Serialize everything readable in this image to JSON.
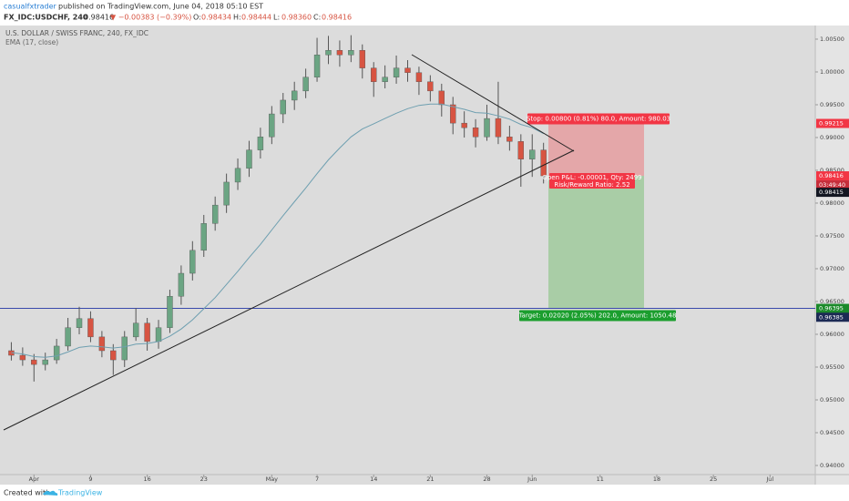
{
  "header": {
    "author": "casualfxtrader",
    "published": "published on TradingView.com, June 04, 2018 05:10 EST",
    "symbol": "FX_IDC:USDCHF, 240",
    "last": "0.98416",
    "change": "▼ −0.00383 (−0.39%)",
    "ohlc": [
      {
        "label": "O:",
        "value": "0.98434"
      },
      {
        "label": "H:",
        "value": "0.98444"
      },
      {
        "label": "L:",
        "value": "0.98360"
      },
      {
        "label": "C:",
        "value": "0.98416"
      }
    ]
  },
  "chart_data": {
    "type": "candlestick",
    "title": "U.S. DOLLAR / SWISS FRANC, 240, FX_IDC",
    "categories": [
      "2018-03-29",
      "2018-03-30",
      "2018-04-02",
      "2018-04-03",
      "2018-04-04",
      "2018-04-05",
      "2018-04-06",
      "2018-04-09",
      "2018-04-10",
      "2018-04-11",
      "2018-04-12",
      "2018-04-13",
      "2018-04-16",
      "2018-04-17",
      "2018-04-18",
      "2018-04-19",
      "2018-04-20",
      "2018-04-23",
      "2018-04-24",
      "2018-04-25",
      "2018-04-26",
      "2018-04-27",
      "2018-04-30",
      "2018-05-01",
      "2018-05-02",
      "2018-05-03",
      "2018-05-04",
      "2018-05-07",
      "2018-05-08",
      "2018-05-09",
      "2018-05-10",
      "2018-05-11",
      "2018-05-14",
      "2018-05-15",
      "2018-05-16",
      "2018-05-17",
      "2018-05-18",
      "2018-05-21",
      "2018-05-22",
      "2018-05-23",
      "2018-05-24",
      "2018-05-25",
      "2018-05-28",
      "2018-05-29",
      "2018-05-30",
      "2018-05-31",
      "2018-06-01",
      "2018-06-04"
    ],
    "open": [
      0.9575,
      0.9568,
      0.9561,
      0.9554,
      0.9561,
      0.9582,
      0.961,
      0.9624,
      0.9596,
      0.9575,
      0.9561,
      0.9596,
      0.9617,
      0.9589,
      0.961,
      0.9658,
      0.9693,
      0.9728,
      0.9769,
      0.9797,
      0.9832,
      0.9853,
      0.9881,
      0.9901,
      0.9936,
      0.9957,
      0.9971,
      0.9992,
      1.0026,
      1.0033,
      1.0026,
      1.0033,
      1.0006,
      0.9985,
      0.9992,
      1.0006,
      0.9999,
      0.9985,
      0.9971,
      0.995,
      0.9922,
      0.9915,
      0.9901,
      0.9929,
      0.9901,
      0.9894,
      0.9867,
      0.9881
    ],
    "high": [
      0.9588,
      0.958,
      0.957,
      0.9572,
      0.9593,
      0.9625,
      0.9642,
      0.9635,
      0.9605,
      0.9585,
      0.9605,
      0.964,
      0.9625,
      0.9622,
      0.9668,
      0.9705,
      0.9742,
      0.9782,
      0.981,
      0.9845,
      0.9868,
      0.9895,
      0.9915,
      0.9948,
      0.9968,
      0.9985,
      1.0005,
      1.0052,
      1.0055,
      1.0048,
      1.0056,
      1.0042,
      1.0015,
      1.001,
      1.0025,
      1.0018,
      1.0008,
      0.9995,
      0.9982,
      0.9962,
      0.994,
      0.9928,
      0.995,
      0.9985,
      0.9918,
      0.9905,
      0.9905,
      0.9892
    ],
    "low": [
      0.956,
      0.9552,
      0.9528,
      0.9545,
      0.9555,
      0.9575,
      0.96,
      0.9588,
      0.9565,
      0.9538,
      0.955,
      0.959,
      0.9575,
      0.9578,
      0.9602,
      0.9645,
      0.9682,
      0.9718,
      0.9758,
      0.9785,
      0.982,
      0.984,
      0.9868,
      0.989,
      0.9922,
      0.9942,
      0.996,
      0.9985,
      1.0012,
      1.0008,
      1.0015,
      0.999,
      0.9962,
      0.9975,
      0.9982,
      0.9985,
      0.9965,
      0.9955,
      0.9932,
      0.9905,
      0.99,
      0.9885,
      0.9895,
      0.989,
      0.988,
      0.9825,
      0.984,
      0.983
    ],
    "close": [
      0.9568,
      0.9561,
      0.9554,
      0.9561,
      0.9582,
      0.961,
      0.9624,
      0.9596,
      0.9575,
      0.9561,
      0.9596,
      0.9617,
      0.9589,
      0.961,
      0.9658,
      0.9693,
      0.9728,
      0.9769,
      0.9797,
      0.9832,
      0.9853,
      0.9881,
      0.9901,
      0.9936,
      0.9957,
      0.9971,
      0.9992,
      1.0026,
      1.0033,
      1.0026,
      1.0033,
      1.0006,
      0.9985,
      0.9992,
      1.0006,
      0.9999,
      0.9985,
      0.9971,
      0.995,
      0.9922,
      0.9915,
      0.9901,
      0.9929,
      0.9901,
      0.9894,
      0.9867,
      0.9881,
      0.98416
    ],
    "up_color": "#6ba583",
    "down_color": "#d75442",
    "ema": {
      "name": "EMA (17, close)",
      "color": "#6e9fb0",
      "values": [
        0.9572,
        0.957,
        0.9566,
        0.9565,
        0.9567,
        0.9573,
        0.958,
        0.9582,
        0.9581,
        0.9579,
        0.9581,
        0.9585,
        0.9586,
        0.9589,
        0.9597,
        0.9608,
        0.9622,
        0.9639,
        0.9656,
        0.9676,
        0.9696,
        0.9717,
        0.9737,
        0.9759,
        0.9781,
        0.9802,
        0.9823,
        0.9845,
        0.9866,
        0.9884,
        0.9901,
        0.9913,
        0.9921,
        0.9929,
        0.9937,
        0.9944,
        0.9949,
        0.9951,
        0.9951,
        0.9947,
        0.9943,
        0.9938,
        0.9937,
        0.9933,
        0.9928,
        0.992,
        0.9915,
        0.9906
      ]
    },
    "xlim": [
      "2018-03-28",
      "2018-07-06"
    ],
    "xticks": [
      {
        "value": "2018-04-02",
        "label": "Apr"
      },
      {
        "value": "2018-04-09",
        "label": "9"
      },
      {
        "value": "2018-04-16",
        "label": "16"
      },
      {
        "value": "2018-04-23",
        "label": "23"
      },
      {
        "value": "2018-05-01",
        "label": "May"
      },
      {
        "value": "2018-05-07",
        "label": "7"
      },
      {
        "value": "2018-05-14",
        "label": "14"
      },
      {
        "value": "2018-05-21",
        "label": "21"
      },
      {
        "value": "2018-05-28",
        "label": "28"
      },
      {
        "value": "2018-06-01",
        "label": "Jun"
      },
      {
        "value": "2018-06-11",
        "label": "11"
      },
      {
        "value": "2018-06-18",
        "label": "18"
      },
      {
        "value": "2018-06-25",
        "label": "25"
      },
      {
        "value": "2018-07-02",
        "label": "Jul"
      }
    ],
    "ylim": [
      0.93861,
      1.00708
    ],
    "yticks": [
      {
        "value": 0.94,
        "label": "0.94000"
      },
      {
        "value": 0.945,
        "label": "0.94500"
      },
      {
        "value": 0.95,
        "label": "0.95000"
      },
      {
        "value": 0.955,
        "label": "0.95500"
      },
      {
        "value": 0.96,
        "label": "0.96000"
      },
      {
        "value": 0.965,
        "label": "0.96500"
      },
      {
        "value": 0.97,
        "label": "0.97000"
      },
      {
        "value": 0.975,
        "label": "0.97500"
      },
      {
        "value": 0.98,
        "label": "0.98000"
      },
      {
        "value": 0.985,
        "label": "0.98500"
      },
      {
        "value": 0.99,
        "label": "0.99000"
      },
      {
        "value": 0.995,
        "label": "0.99500"
      },
      {
        "value": 1.0,
        "label": "1.00000"
      },
      {
        "value": 1.005,
        "label": "1.00500"
      }
    ],
    "grid": false,
    "position": {
      "entry": 0.98416,
      "stop": 0.99215,
      "target": 0.96395,
      "stop_label": "Stop: 0.00800 (0.81%) 80.0, Amount: 980.03",
      "pnl_label": "Open P&L: -0.00001, Qty: 2499",
      "rr_label": "Risk/Reward Ratio: 2.52",
      "target_label": "Target: 0.02020 (2.05%) 202.0, Amount: 1050.48"
    },
    "hline": {
      "value": 0.96395,
      "color": "#3949ab"
    },
    "price_labels": [
      {
        "value": 0.99215,
        "color": "#f23645"
      },
      {
        "value": 0.98416,
        "color": "#f23645"
      },
      {
        "value": 0.98415,
        "color": "#131722"
      },
      {
        "value": 0.96395,
        "color": "#1b8a2a"
      },
      {
        "value": 0.96385,
        "color": "#1c2a55"
      }
    ],
    "countdown": "03:49:40"
  },
  "footer": {
    "created": "Created with",
    "brand": "TradingView"
  }
}
